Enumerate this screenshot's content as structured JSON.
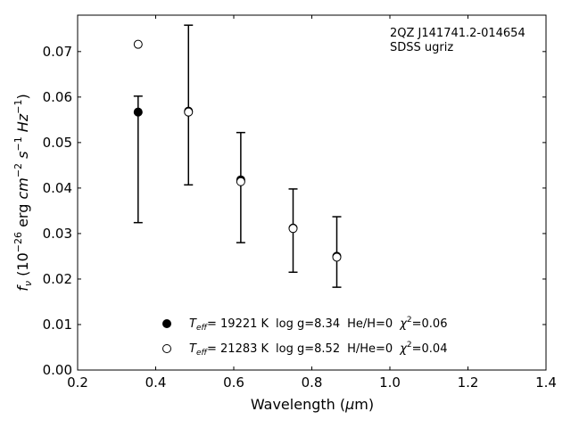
{
  "chart_data": {
    "type": "scatter",
    "annotation": {
      "object": "2QZ J141741.2-014654",
      "photometry": "SDSS ugriz"
    },
    "xlabel": "Wavelength (μm)",
    "ylabel": "f_ν (10^-26 erg cm^-2 s^-1 Hz^-1)",
    "xlim": [
      0.2,
      1.4
    ],
    "ylim": [
      0.0,
      0.078
    ],
    "xticks": [
      "0.2",
      "0.4",
      "0.6",
      "0.8",
      "1.0",
      "1.2",
      "1.4"
    ],
    "yticks": [
      "0.00",
      "0.01",
      "0.02",
      "0.03",
      "0.04",
      "0.05",
      "0.06",
      "0.07"
    ],
    "legend_position": "lower-center",
    "series": [
      {
        "marker": "filled",
        "label": {
          "teff": "= 19221 K",
          "logg": "log g=8.34",
          "comp": "He/H=0",
          "chi2": "=0.06"
        },
        "x": [
          0.355,
          0.484,
          0.618,
          0.752,
          0.864
        ],
        "y": [
          0.0567,
          0.0569,
          0.0418,
          0.0312,
          0.025
        ]
      },
      {
        "marker": "open",
        "label": {
          "teff": "= 21283 K",
          "logg": "log g=8.52",
          "comp": "H/He=0",
          "chi2": "=0.04"
        },
        "x": [
          0.355,
          0.484,
          0.618,
          0.752,
          0.864
        ],
        "y": [
          0.0716,
          0.0567,
          0.0414,
          0.0311,
          0.0248
        ]
      }
    ],
    "observed_errorbars": {
      "x": [
        0.355,
        0.484,
        0.618,
        0.752,
        0.864
      ],
      "low": [
        0.0324,
        0.0407,
        0.028,
        0.0215,
        0.0182
      ],
      "high": [
        0.0602,
        0.0758,
        0.0522,
        0.0398,
        0.0337
      ]
    }
  }
}
